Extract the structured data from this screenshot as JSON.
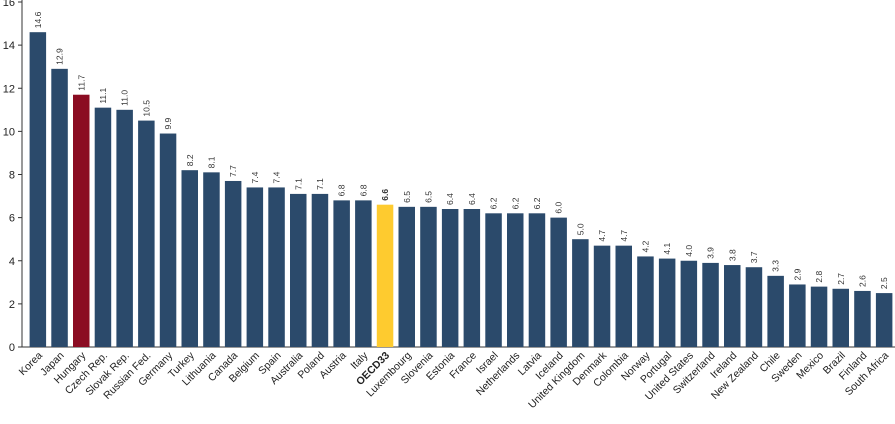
{
  "chart_data": {
    "type": "bar",
    "categories": [
      "Korea",
      "Japan",
      "Hungary",
      "Czech Rep.",
      "Slovak Rep.",
      "Russian Fed.",
      "Germany",
      "Turkey",
      "Lithuania",
      "Canada",
      "Belgium",
      "Spain",
      "Australia",
      "Poland",
      "Austria",
      "Italy",
      "OECD33",
      "Luxembourg",
      "Slovenia",
      "Estonia",
      "France",
      "Israel",
      "Netherlands",
      "Latvia",
      "Iceland",
      "United Kingdom",
      "Denmark",
      "Colombia",
      "Norway",
      "Portugal",
      "United States",
      "Switzerland",
      "Ireland",
      "New Zealand",
      "Chile",
      "Sweden",
      "Mexico",
      "Brazil",
      "Finland",
      "South Africa"
    ],
    "values": [
      14.6,
      12.9,
      11.7,
      11.1,
      11.0,
      10.5,
      9.9,
      8.2,
      8.1,
      7.7,
      7.4,
      7.4,
      7.1,
      7.1,
      6.8,
      6.8,
      6.6,
      6.5,
      6.5,
      6.4,
      6.4,
      6.2,
      6.2,
      6.2,
      6.0,
      5.0,
      4.7,
      4.7,
      4.2,
      4.1,
      4.0,
      3.9,
      3.8,
      3.7,
      3.3,
      2.9,
      2.8,
      2.7,
      2.6,
      2.5
    ],
    "labels": [
      "14.6",
      "12.9",
      "11.7",
      "11.1",
      "11.0",
      "10.5",
      "9.9",
      "8.2",
      "8.1",
      "7.7",
      "7.4",
      "7.4",
      "7.1",
      "7.1",
      "6.8",
      "6.8",
      "6.6",
      "6.5",
      "6.5",
      "6.4",
      "6.4",
      "6.2",
      "6.2",
      "6.2",
      "6.0",
      "5.0",
      "4.7",
      "4.7",
      "4.2",
      "4.1",
      "4.0",
      "3.9",
      "3.8",
      "3.7",
      "3.3",
      "2.9",
      "2.8",
      "2.7",
      "2.6",
      "2.5"
    ],
    "highlight": {
      "Hungary": "#8b0c22",
      "OECD33": "#fecb2f"
    },
    "bold_categories": [
      "OECD33"
    ],
    "default_color": "#2b4a6b",
    "yticks": [
      "0",
      "2",
      "4",
      "6",
      "8",
      "10",
      "12",
      "14",
      "16"
    ],
    "ylim": [
      0,
      16
    ],
    "grid": false
  }
}
